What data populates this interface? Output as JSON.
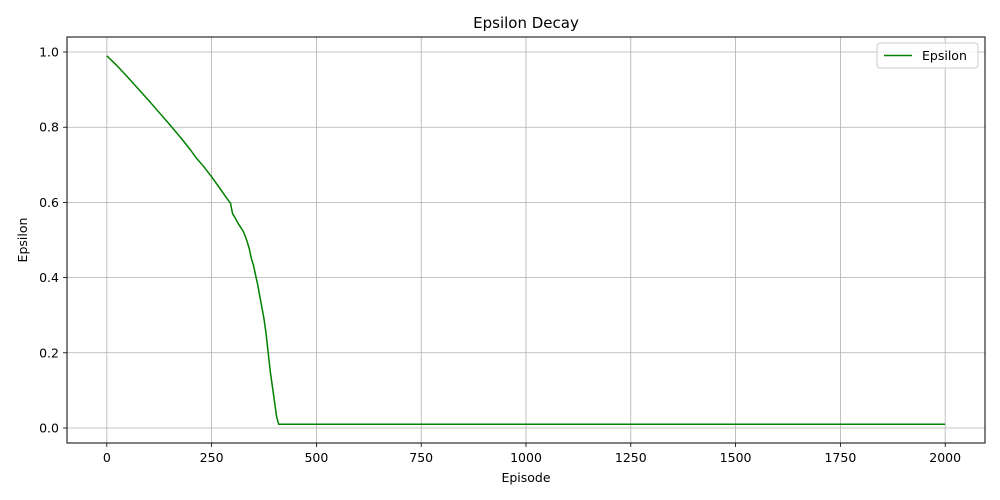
{
  "chart_data": {
    "type": "line",
    "title": "Epsilon Decay",
    "xlabel": "Episode",
    "ylabel": "Epsilon",
    "xlim": [
      -95,
      2095
    ],
    "ylim": [
      -0.04,
      1.04
    ],
    "xticks": [
      0,
      250,
      500,
      750,
      1000,
      1250,
      1500,
      1750,
      2000
    ],
    "yticks": [
      0.0,
      0.2,
      0.4,
      0.6,
      0.8,
      1.0
    ],
    "xtick_labels": [
      "0",
      "250",
      "500",
      "750",
      "1000",
      "1250",
      "1500",
      "1750",
      "2000"
    ],
    "ytick_labels": [
      "0.0",
      "0.2",
      "0.4",
      "0.6",
      "0.8",
      "1.0"
    ],
    "grid": true,
    "legend_position": "top-right",
    "series": [
      {
        "name": "Epsilon",
        "color": "#008000",
        "x": [
          0,
          25,
          50,
          75,
          100,
          125,
          150,
          175,
          200,
          215,
          230,
          250,
          270,
          285,
          295,
          300,
          305,
          315,
          325,
          330,
          335,
          340,
          345,
          350,
          355,
          360,
          365,
          370,
          375,
          380,
          385,
          390,
          395,
          400,
          405,
          410,
          415,
          500,
          750,
          1000,
          1250,
          1500,
          1750,
          2000
        ],
        "y": [
          0.99,
          0.963,
          0.933,
          0.902,
          0.871,
          0.839,
          0.807,
          0.774,
          0.739,
          0.716,
          0.697,
          0.668,
          0.637,
          0.613,
          0.598,
          0.57,
          0.561,
          0.541,
          0.524,
          0.511,
          0.495,
          0.476,
          0.45,
          0.432,
          0.406,
          0.381,
          0.35,
          0.32,
          0.29,
          0.25,
          0.2,
          0.15,
          0.11,
          0.07,
          0.03,
          0.01,
          0.01,
          0.01,
          0.01,
          0.01,
          0.01,
          0.01,
          0.01,
          0.01
        ]
      }
    ]
  }
}
